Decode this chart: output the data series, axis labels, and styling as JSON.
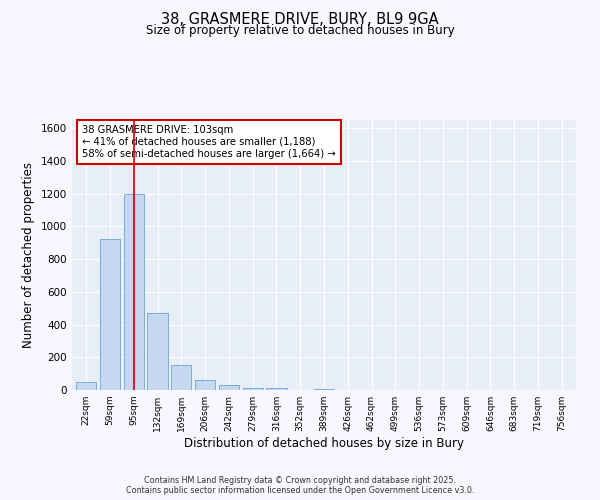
{
  "title_line1": "38, GRASMERE DRIVE, BURY, BL9 9GA",
  "title_line2": "Size of property relative to detached houses in Bury",
  "xlabel": "Distribution of detached houses by size in Bury",
  "ylabel": "Number of detached properties",
  "bar_labels": [
    "22sqm",
    "59sqm",
    "95sqm",
    "132sqm",
    "169sqm",
    "206sqm",
    "242sqm",
    "279sqm",
    "316sqm",
    "352sqm",
    "389sqm",
    "426sqm",
    "462sqm",
    "499sqm",
    "536sqm",
    "573sqm",
    "609sqm",
    "646sqm",
    "683sqm",
    "719sqm",
    "756sqm"
  ],
  "bar_heights": [
    50,
    920,
    1200,
    470,
    155,
    60,
    30,
    14,
    10,
    0,
    8,
    0,
    0,
    0,
    0,
    0,
    0,
    0,
    0,
    0,
    0
  ],
  "bar_color": "#c5d8f0",
  "bar_edge_color": "#7aadda",
  "ylim": [
    0,
    1650
  ],
  "yticks": [
    0,
    200,
    400,
    600,
    800,
    1000,
    1200,
    1400,
    1600
  ],
  "vline_x": 2,
  "vline_color": "#cc0000",
  "annotation_text": "38 GRASMERE DRIVE: 103sqm\n← 41% of detached houses are smaller (1,188)\n58% of semi-detached houses are larger (1,664) →",
  "annotation_edge_color": "#cc0000",
  "fig_bg": "#f7f7ff",
  "plot_bg": "#e8eef8",
  "grid_color": "#ffffff",
  "footer_line1": "Contains HM Land Registry data © Crown copyright and database right 2025.",
  "footer_line2": "Contains public sector information licensed under the Open Government Licence v3.0."
}
